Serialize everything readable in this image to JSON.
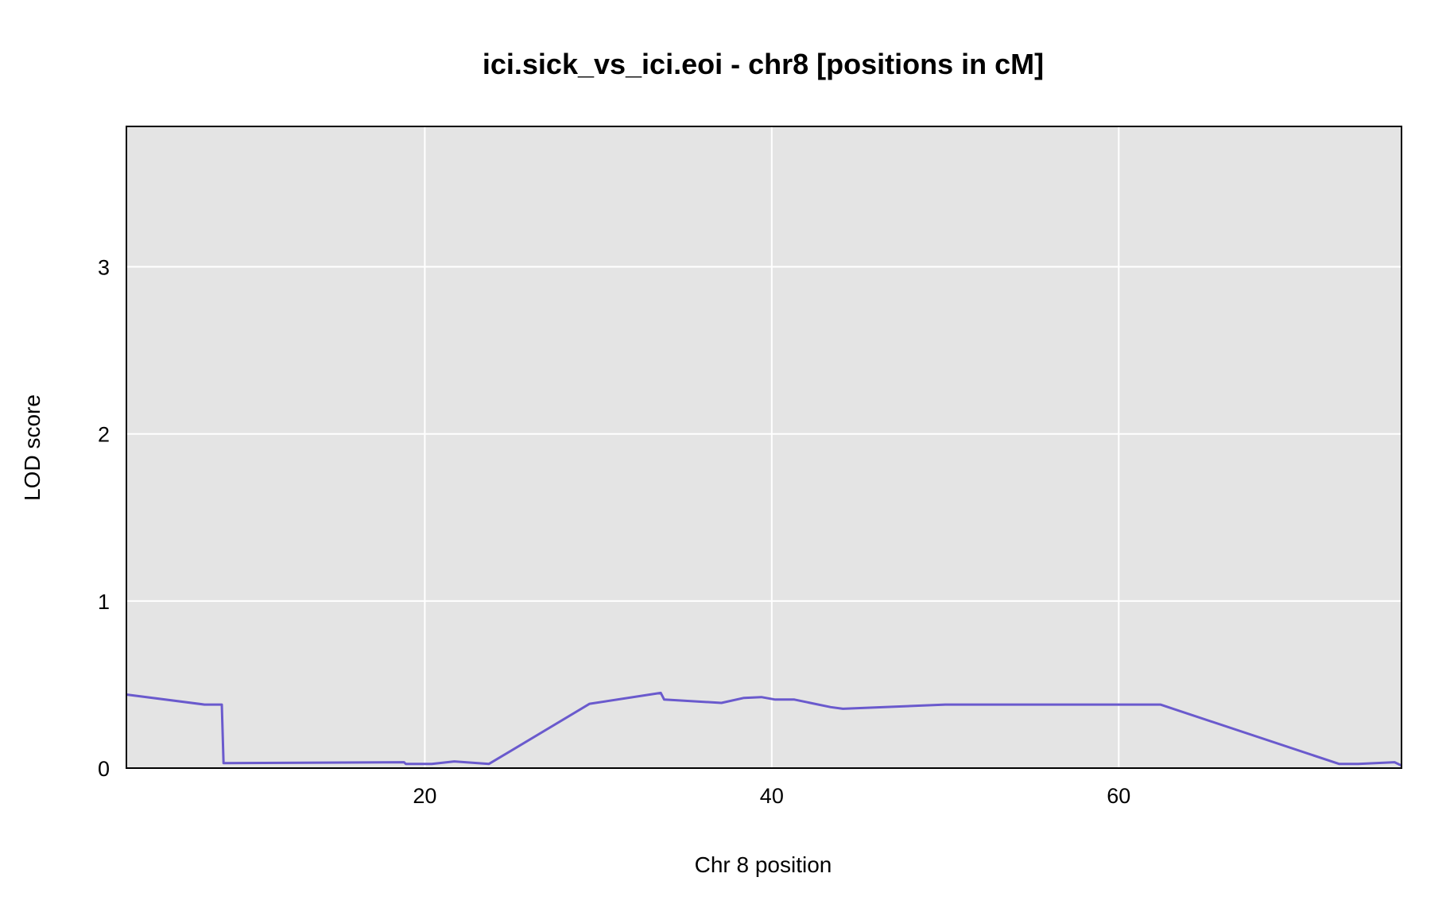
{
  "chart_data": {
    "type": "line",
    "title": "ici.sick_vs_ici.eoi - chr8 [positions in cM]",
    "xlabel": "Chr 8 position",
    "ylabel": "LOD score",
    "xlim": [
      2.8,
      76.3
    ],
    "ylim": [
      0,
      3.84
    ],
    "x_ticks": [
      20,
      40,
      60
    ],
    "y_ticks": [
      0,
      1,
      2,
      3
    ],
    "x_tick_labels": [
      "20",
      "40",
      "60"
    ],
    "y_tick_labels": [
      "0",
      "1",
      "2",
      "3"
    ],
    "grid": true,
    "background": "#e4e4e4",
    "line_color": "#6a5acd",
    "baseline_color": "#1a1a8c",
    "series": [
      {
        "x": [
          2.8,
          7.3,
          8.3,
          8.4,
          18.8,
          18.9,
          20.4,
          21.7,
          23.7,
          29.5,
          33.6,
          33.8,
          37.1,
          38.4,
          39.4,
          40.2,
          41.3,
          43.4,
          44.1,
          50.0,
          62.4,
          72.7,
          73.8,
          75.9,
          76.3
        ],
        "y": [
          0.44,
          0.38,
          0.38,
          0.03,
          0.035,
          0.025,
          0.025,
          0.04,
          0.025,
          0.385,
          0.45,
          0.41,
          0.39,
          0.42,
          0.425,
          0.41,
          0.41,
          0.365,
          0.355,
          0.38,
          0.38,
          0.025,
          0.025,
          0.035,
          0.015
        ]
      }
    ]
  }
}
